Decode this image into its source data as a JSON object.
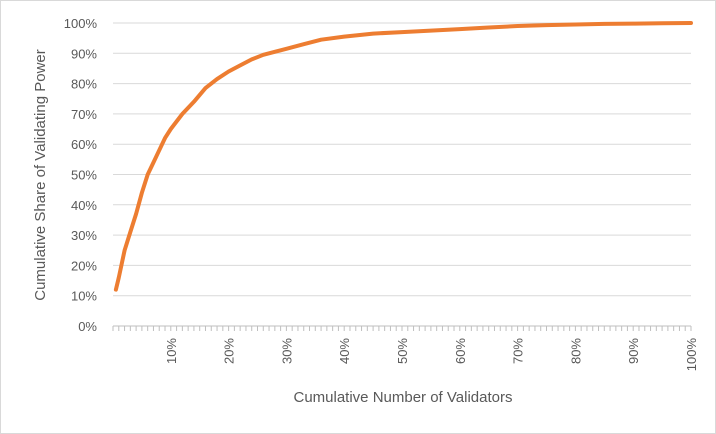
{
  "chart_data": {
    "type": "line",
    "title": "",
    "xlabel": "Cumulative Number of Validators",
    "ylabel": "Cumulative Share of Validating Power",
    "xlim": [
      0,
      100
    ],
    "ylim": [
      0,
      100
    ],
    "x_ticks": [
      10,
      20,
      30,
      40,
      50,
      60,
      70,
      80,
      90,
      100
    ],
    "x_tick_labels": [
      "10%",
      "20%",
      "30%",
      "40%",
      "50%",
      "60%",
      "70%",
      "80%",
      "90%",
      "100%"
    ],
    "y_ticks": [
      0,
      10,
      20,
      30,
      40,
      50,
      60,
      70,
      80,
      90,
      100
    ],
    "y_tick_labels": [
      "0%",
      "10%",
      "20%",
      "30%",
      "40%",
      "50%",
      "60%",
      "70%",
      "80%",
      "90%",
      "100%"
    ],
    "grid": "horizontal",
    "legend": "none",
    "series": [
      {
        "color": "#ED7D31",
        "x": [
          0.5,
          1,
          2,
          3,
          4,
          5,
          6,
          7,
          8,
          9,
          10,
          12,
          14,
          16,
          18,
          20,
          22,
          24,
          26,
          28,
          30,
          33,
          36,
          40,
          45,
          50,
          55,
          60,
          65,
          70,
          75,
          80,
          85,
          90,
          95,
          100
        ],
        "y": [
          12,
          16,
          25,
          31,
          37,
          44,
          50,
          54,
          58,
          62,
          65,
          70,
          74,
          78.5,
          81.5,
          84,
          86,
          88,
          89.5,
          90.5,
          91.5,
          93,
          94.5,
          95.5,
          96.5,
          97,
          97.5,
          98,
          98.5,
          99,
          99.3,
          99.5,
          99.7,
          99.8,
          99.9,
          100
        ]
      }
    ]
  }
}
